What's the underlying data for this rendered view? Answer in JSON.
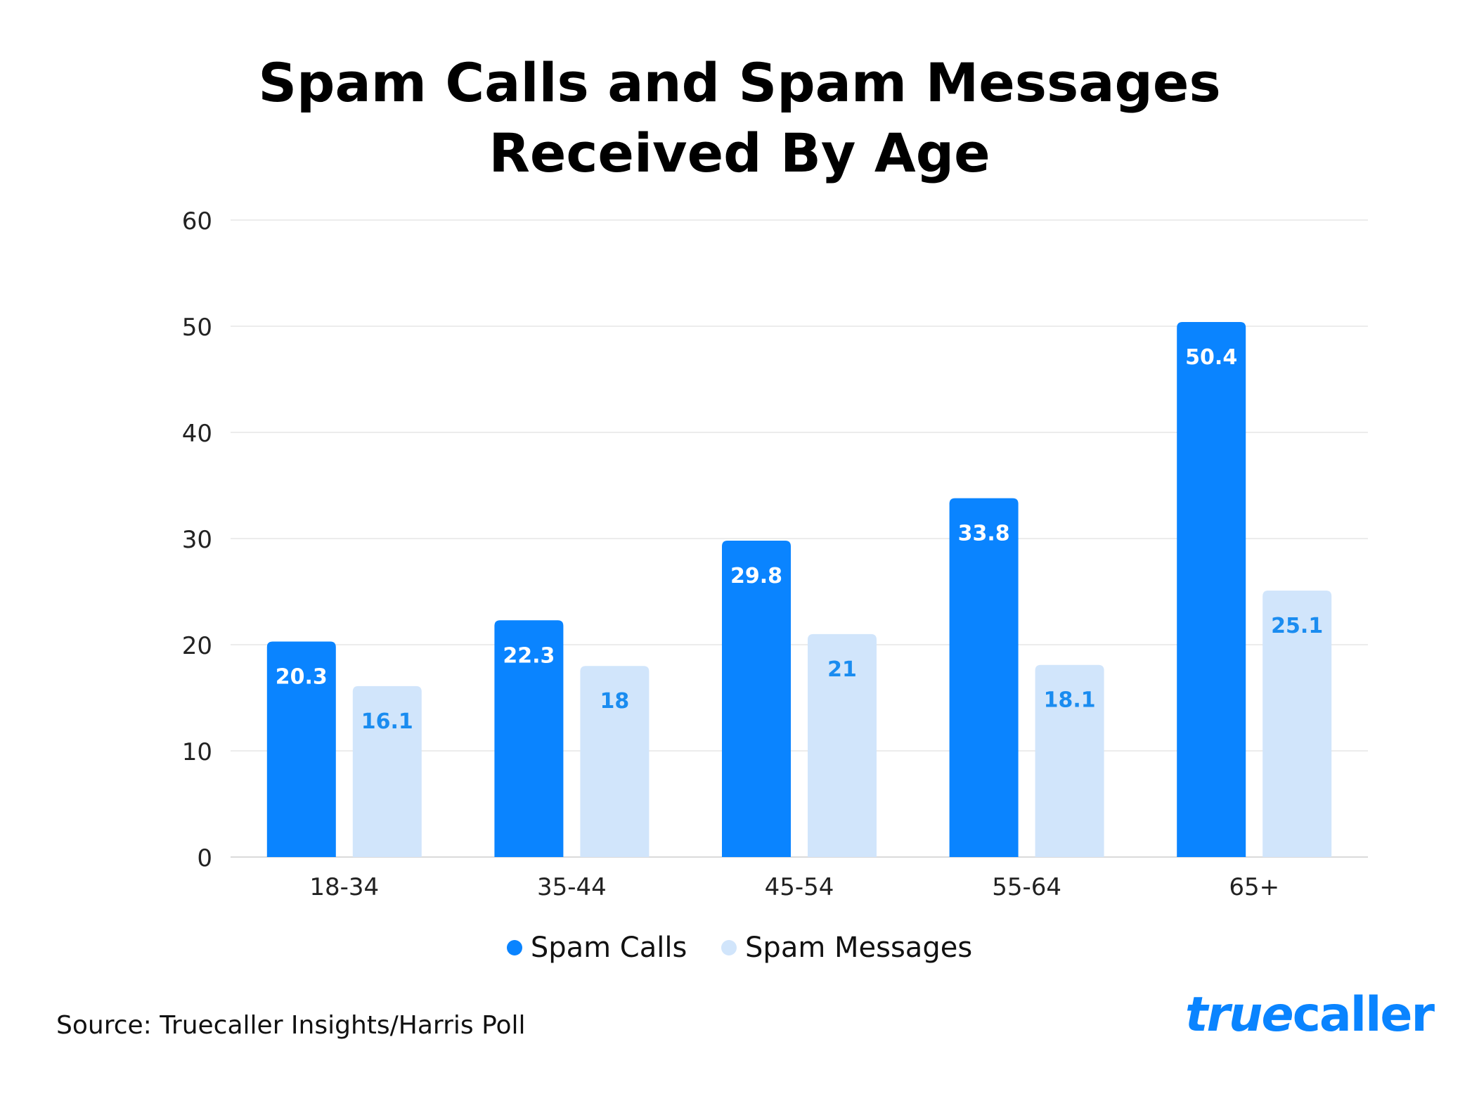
{
  "chart_data": {
    "type": "bar",
    "title": "Spam Calls and Spam Messages Received By Age",
    "title_lines": [
      "Spam Calls and Spam Messages",
      "Received By Age"
    ],
    "categories": [
      "18-34",
      "35-44",
      "45-54",
      "55-64",
      "65+"
    ],
    "series": [
      {
        "name": "Spam Calls",
        "values": [
          20.3,
          22.3,
          29.8,
          33.8,
          50.4
        ],
        "color": "#0A84FF",
        "label_color": "#ffffff"
      },
      {
        "name": "Spam Messages",
        "values": [
          16.1,
          18,
          21,
          18.1,
          25.1
        ],
        "color": "#D1E5FB",
        "label_color": "#1A8CF0"
      }
    ],
    "data_labels": [
      [
        "20.3",
        "22.3",
        "29.8",
        "33.8",
        "50.4"
      ],
      [
        "16.1",
        "18",
        "21",
        "18.1",
        "25.1"
      ]
    ],
    "ylim": [
      0,
      60
    ],
    "yticks": [
      "0",
      "10",
      "20",
      "30",
      "40",
      "50",
      "60"
    ],
    "grid": true,
    "legend_position": "bottom-center",
    "xlabel": "",
    "ylabel": ""
  },
  "source": "Source: Truecaller Insights/Harris Poll",
  "logo": {
    "text_part1": "true",
    "text_part2": "caller",
    "color": "#0A84FF"
  }
}
